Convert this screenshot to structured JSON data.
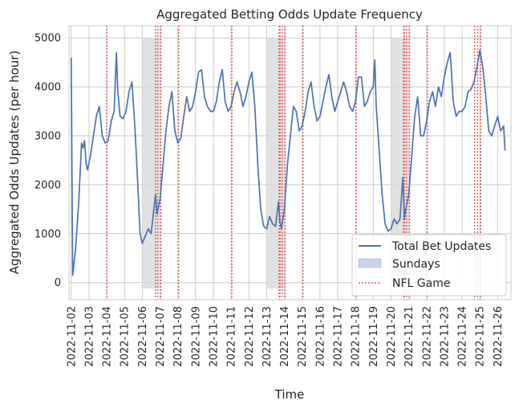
{
  "chart_data": {
    "type": "line",
    "title": "Aggregated Betting Odds Update Frequency",
    "xlabel": "Time",
    "ylabel": "Aggregated Odds Updates (per hour)",
    "x_ticks": [
      "2022-11-02",
      "2022-11-03",
      "2022-11-04",
      "2022-11-05",
      "2022-11-06",
      "2022-11-07",
      "2022-11-08",
      "2022-11-09",
      "2022-11-10",
      "2022-11-11",
      "2022-11-12",
      "2022-11-13",
      "2022-11-14",
      "2022-11-15",
      "2022-11-16",
      "2022-11-17",
      "2022-11-18",
      "2022-11-19",
      "2022-11-20",
      "2022-11-21",
      "2022-11-22",
      "2022-11-23",
      "2022-11-24",
      "2022-11-25",
      "2022-11-26"
    ],
    "xlim": [
      "2022-11-01 21:00",
      "2022-11-26 18:00"
    ],
    "y_ticks": [
      0,
      1000,
      2000,
      3000,
      4000,
      5000
    ],
    "ylim": [
      -350,
      5250
    ],
    "grid": true,
    "legend_position": "lower-right",
    "legend": [
      "Total Bet Updates",
      "Sundays",
      "NFL Game"
    ],
    "series": [
      {
        "name": "Total Bet Updates",
        "color": "#4c72b0",
        "points": [
          [
            "2022-11-02 00:00",
            4600
          ],
          [
            "2022-11-02 02:00",
            150
          ],
          [
            "2022-11-02 06:00",
            700
          ],
          [
            "2022-11-02 10:00",
            1600
          ],
          [
            "2022-11-02 14:00",
            2850
          ],
          [
            "2022-11-02 16:00",
            2750
          ],
          [
            "2022-11-02 18:00",
            2900
          ],
          [
            "2022-11-02 20:00",
            2450
          ],
          [
            "2022-11-02 22:00",
            2300
          ],
          [
            "2022-11-03 02:00",
            2600
          ],
          [
            "2022-11-03 06:00",
            3000
          ],
          [
            "2022-11-03 10:00",
            3400
          ],
          [
            "2022-11-03 14:00",
            3600
          ],
          [
            "2022-11-03 18:00",
            3000
          ],
          [
            "2022-11-03 22:00",
            2850
          ],
          [
            "2022-11-04 02:00",
            2900
          ],
          [
            "2022-11-04 06:00",
            3300
          ],
          [
            "2022-11-04 10:00",
            3500
          ],
          [
            "2022-11-04 13:00",
            4700
          ],
          [
            "2022-11-04 15:00",
            3900
          ],
          [
            "2022-11-04 18:00",
            3400
          ],
          [
            "2022-11-04 22:00",
            3350
          ],
          [
            "2022-11-05 02:00",
            3500
          ],
          [
            "2022-11-05 06:00",
            3900
          ],
          [
            "2022-11-05 10:00",
            4100
          ],
          [
            "2022-11-05 14:00",
            3200
          ],
          [
            "2022-11-05 18:00",
            2000
          ],
          [
            "2022-11-05 21:00",
            1000
          ],
          [
            "2022-11-06 00:00",
            800
          ],
          [
            "2022-11-06 04:00",
            950
          ],
          [
            "2022-11-06 08:00",
            1100
          ],
          [
            "2022-11-06 12:00",
            1000
          ],
          [
            "2022-11-06 16:00",
            1550
          ],
          [
            "2022-11-06 18:00",
            1800
          ],
          [
            "2022-11-06 20:00",
            1400
          ],
          [
            "2022-11-07 00:00",
            1700
          ],
          [
            "2022-11-07 04:00",
            2400
          ],
          [
            "2022-11-07 08:00",
            3100
          ],
          [
            "2022-11-07 12:00",
            3600
          ],
          [
            "2022-11-07 16:00",
            3900
          ],
          [
            "2022-11-07 20:00",
            3100
          ],
          [
            "2022-11-08 00:00",
            2850
          ],
          [
            "2022-11-08 04:00",
            2950
          ],
          [
            "2022-11-08 08:00",
            3400
          ],
          [
            "2022-11-08 12:00",
            3800
          ],
          [
            "2022-11-08 16:00",
            3500
          ],
          [
            "2022-11-08 20:00",
            3600
          ],
          [
            "2022-11-09 00:00",
            3900
          ],
          [
            "2022-11-09 04:00",
            4300
          ],
          [
            "2022-11-09 08:00",
            4350
          ],
          [
            "2022-11-09 12:00",
            3800
          ],
          [
            "2022-11-09 16:00",
            3600
          ],
          [
            "2022-11-09 20:00",
            3500
          ],
          [
            "2022-11-10 00:00",
            3500
          ],
          [
            "2022-11-10 04:00",
            3700
          ],
          [
            "2022-11-10 08:00",
            4100
          ],
          [
            "2022-11-10 12:00",
            4350
          ],
          [
            "2022-11-10 16:00",
            3700
          ],
          [
            "2022-11-10 20:00",
            3500
          ],
          [
            "2022-11-11 00:00",
            3600
          ],
          [
            "2022-11-11 04:00",
            3900
          ],
          [
            "2022-11-11 08:00",
            4100
          ],
          [
            "2022-11-11 12:00",
            3900
          ],
          [
            "2022-11-11 16:00",
            3600
          ],
          [
            "2022-11-11 20:00",
            3800
          ],
          [
            "2022-11-12 00:00",
            4100
          ],
          [
            "2022-11-12 04:00",
            4300
          ],
          [
            "2022-11-12 08:00",
            3600
          ],
          [
            "2022-11-12 12:00",
            2400
          ],
          [
            "2022-11-12 16:00",
            1500
          ],
          [
            "2022-11-12 20:00",
            1150
          ],
          [
            "2022-11-13 00:00",
            1100
          ],
          [
            "2022-11-13 04:00",
            1350
          ],
          [
            "2022-11-13 08:00",
            1200
          ],
          [
            "2022-11-13 12:00",
            1150
          ],
          [
            "2022-11-13 16:00",
            1650
          ],
          [
            "2022-11-13 18:00",
            1250
          ],
          [
            "2022-11-13 20:00",
            1100
          ],
          [
            "2022-11-14 00:00",
            1500
          ],
          [
            "2022-11-14 04:00",
            2400
          ],
          [
            "2022-11-14 08:00",
            3000
          ],
          [
            "2022-11-14 12:00",
            3600
          ],
          [
            "2022-11-14 16:00",
            3500
          ],
          [
            "2022-11-14 20:00",
            3100
          ],
          [
            "2022-11-15 00:00",
            3200
          ],
          [
            "2022-11-15 04:00",
            3500
          ],
          [
            "2022-11-15 08:00",
            3900
          ],
          [
            "2022-11-15 12:00",
            4100
          ],
          [
            "2022-11-15 16:00",
            3600
          ],
          [
            "2022-11-15 20:00",
            3300
          ],
          [
            "2022-11-16 00:00",
            3400
          ],
          [
            "2022-11-16 04:00",
            3700
          ],
          [
            "2022-11-16 08:00",
            4000
          ],
          [
            "2022-11-16 12:00",
            4250
          ],
          [
            "2022-11-16 16:00",
            3800
          ],
          [
            "2022-11-16 20:00",
            3500
          ],
          [
            "2022-11-17 00:00",
            3700
          ],
          [
            "2022-11-17 04:00",
            3900
          ],
          [
            "2022-11-17 08:00",
            4100
          ],
          [
            "2022-11-17 12:00",
            3900
          ],
          [
            "2022-11-17 16:00",
            3600
          ],
          [
            "2022-11-17 20:00",
            3500
          ],
          [
            "2022-11-18 00:00",
            3700
          ],
          [
            "2022-11-18 04:00",
            4200
          ],
          [
            "2022-11-18 08:00",
            4200
          ],
          [
            "2022-11-18 12:00",
            3600
          ],
          [
            "2022-11-18 16:00",
            3700
          ],
          [
            "2022-11-18 20:00",
            3900
          ],
          [
            "2022-11-19 00:00",
            4000
          ],
          [
            "2022-11-19 02:00",
            4550
          ],
          [
            "2022-11-19 04:00",
            3600
          ],
          [
            "2022-11-19 08:00",
            2700
          ],
          [
            "2022-11-19 12:00",
            1800
          ],
          [
            "2022-11-19 16:00",
            1200
          ],
          [
            "2022-11-19 20:00",
            1050
          ],
          [
            "2022-11-20 00:00",
            1100
          ],
          [
            "2022-11-20 04:00",
            1300
          ],
          [
            "2022-11-20 08:00",
            1200
          ],
          [
            "2022-11-20 12:00",
            1300
          ],
          [
            "2022-11-20 16:00",
            2150
          ],
          [
            "2022-11-20 18:00",
            1300
          ],
          [
            "2022-11-20 20:00",
            1500
          ],
          [
            "2022-11-21 00:00",
            1800
          ],
          [
            "2022-11-21 04:00",
            2600
          ],
          [
            "2022-11-21 08:00",
            3400
          ],
          [
            "2022-11-21 12:00",
            3800
          ],
          [
            "2022-11-21 16:00",
            3000
          ],
          [
            "2022-11-21 20:00",
            3000
          ],
          [
            "2022-11-22 00:00",
            3300
          ],
          [
            "2022-11-22 04:00",
            3700
          ],
          [
            "2022-11-22 08:00",
            3900
          ],
          [
            "2022-11-22 12:00",
            3600
          ],
          [
            "2022-11-22 16:00",
            4000
          ],
          [
            "2022-11-22 20:00",
            3800
          ],
          [
            "2022-11-23 00:00",
            4200
          ],
          [
            "2022-11-23 04:00",
            4500
          ],
          [
            "2022-11-23 08:00",
            4700
          ],
          [
            "2022-11-23 12:00",
            3700
          ],
          [
            "2022-11-23 16:00",
            3400
          ],
          [
            "2022-11-23 20:00",
            3500
          ],
          [
            "2022-11-24 00:00",
            3500
          ],
          [
            "2022-11-24 04:00",
            3600
          ],
          [
            "2022-11-24 08:00",
            3900
          ],
          [
            "2022-11-24 12:00",
            3950
          ],
          [
            "2022-11-24 16:00",
            4100
          ],
          [
            "2022-11-24 20:00",
            4400
          ],
          [
            "2022-11-25 00:00",
            4750
          ],
          [
            "2022-11-25 04:00",
            4400
          ],
          [
            "2022-11-25 08:00",
            3800
          ],
          [
            "2022-11-25 12:00",
            3100
          ],
          [
            "2022-11-25 16:00",
            3000
          ],
          [
            "2022-11-25 20:00",
            3200
          ],
          [
            "2022-11-26 00:00",
            3400
          ],
          [
            "2022-11-26 04:00",
            3100
          ],
          [
            "2022-11-26 08:00",
            3200
          ],
          [
            "2022-11-26 10:00",
            2700
          ]
        ]
      }
    ],
    "sundays": [
      [
        "2022-11-06 00:00",
        "2022-11-06 23:00"
      ],
      [
        "2022-11-13 00:00",
        "2022-11-13 23:00"
      ],
      [
        "2022-11-20 00:00",
        "2022-11-20 23:00"
      ]
    ],
    "nfl_games": [
      "2022-11-04 00:00",
      "2022-11-06 18:00",
      "2022-11-06 21:00",
      "2022-11-07 01:00",
      "2022-11-08 01:00",
      "2022-11-11 01:00",
      "2022-11-13 17:00",
      "2022-11-13 18:00",
      "2022-11-13 21:00",
      "2022-11-14 01:00",
      "2022-11-15 01:00",
      "2022-11-18 01:00",
      "2022-11-20 17:00",
      "2022-11-20 18:00",
      "2022-11-20 21:00",
      "2022-11-21 01:00",
      "2022-11-22 01:00",
      "2022-11-24 17:00",
      "2022-11-24 21:00",
      "2022-11-25 01:00"
    ],
    "colors": {
      "line": "#4c72b0",
      "sundays_fill": "#d9d9d9",
      "nfl_line": "#e45756",
      "legend_sunday_fill": "#c9d3e8"
    }
  }
}
